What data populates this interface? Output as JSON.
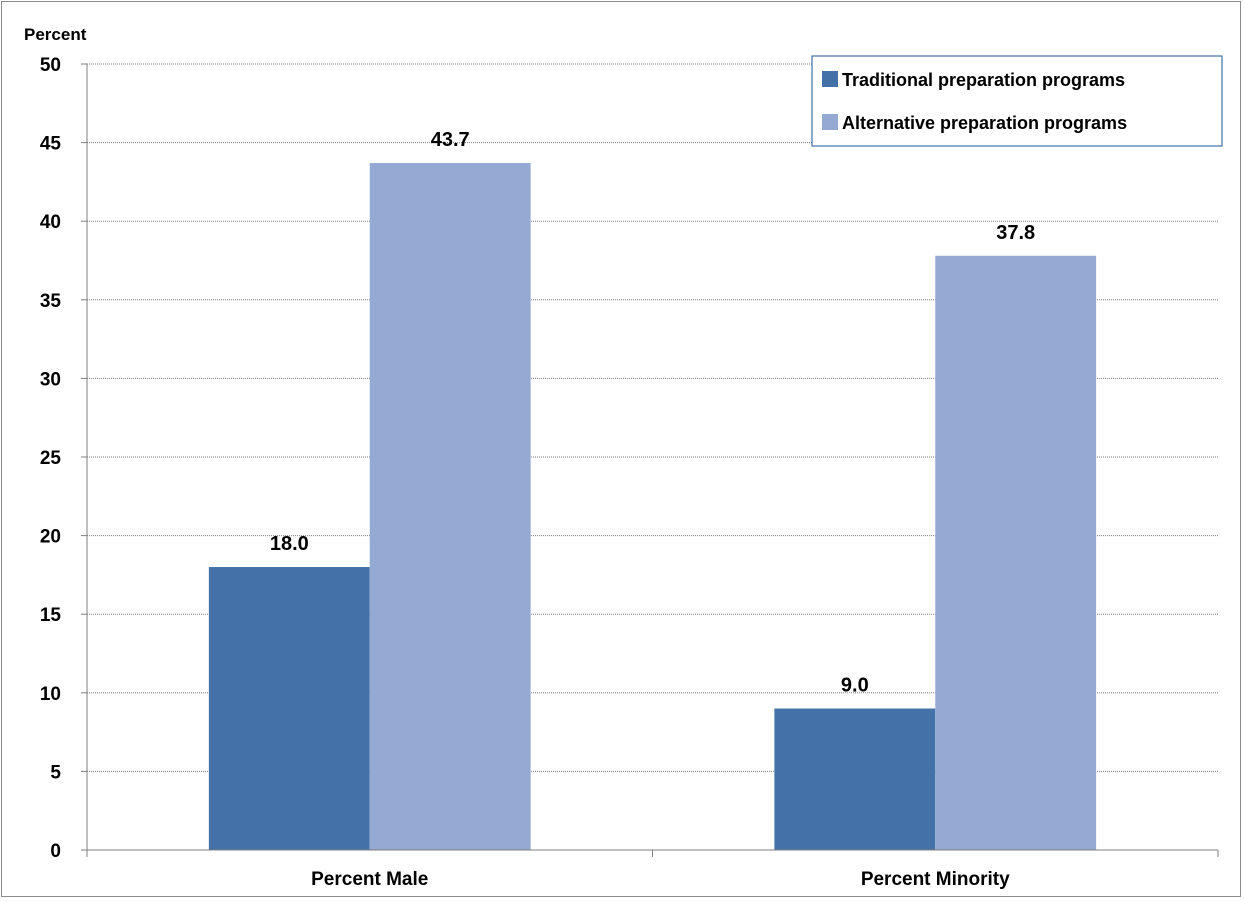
{
  "chart_data": {
    "type": "bar",
    "ylabel": "Percent",
    "xlabel": "",
    "categories": [
      "Percent Male",
      "Percent Minority"
    ],
    "series": [
      {
        "name": "Traditional preparation programs",
        "values": [
          18.0,
          9.0
        ],
        "color": "#4472a8"
      },
      {
        "name": "Alternative preparation programs",
        "values": [
          43.7,
          37.8
        ],
        "color": "#95aad3"
      }
    ],
    "data_labels": [
      [
        "18.0",
        "9.0"
      ],
      [
        "43.7",
        "37.8"
      ]
    ],
    "ylim": [
      0,
      50
    ],
    "yticks": [
      "0",
      "5",
      "10",
      "15",
      "20",
      "25",
      "30",
      "35",
      "40",
      "45",
      "50"
    ],
    "grid": true,
    "legend_position": "top-right"
  }
}
